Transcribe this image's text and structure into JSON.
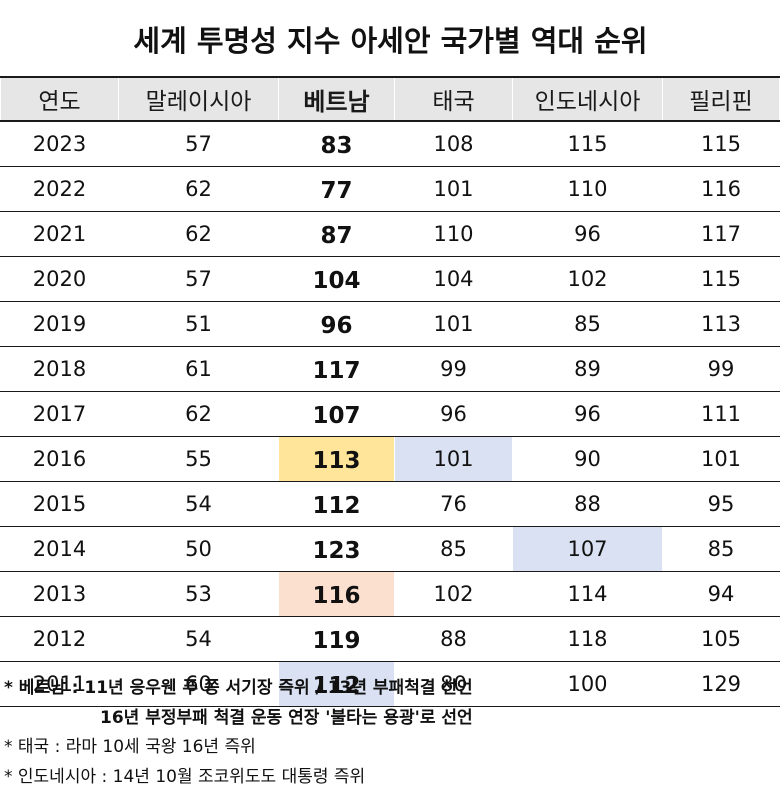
{
  "title": "세계 투명성 지수 아세안 국가별 역대 순위",
  "table": {
    "headers": [
      "연도",
      "말레이시아",
      "베트남",
      "태국",
      "인도네시아",
      "필리핀"
    ],
    "rows": [
      {
        "year": "2023",
        "malaysia": "57",
        "vietnam": "83",
        "thailand": "108",
        "indonesia": "115",
        "philippines": "115"
      },
      {
        "year": "2022",
        "malaysia": "62",
        "vietnam": "77",
        "thailand": "101",
        "indonesia": "110",
        "philippines": "116"
      },
      {
        "year": "2021",
        "malaysia": "62",
        "vietnam": "87",
        "thailand": "110",
        "indonesia": "96",
        "philippines": "117"
      },
      {
        "year": "2020",
        "malaysia": "57",
        "vietnam": "104",
        "thailand": "104",
        "indonesia": "102",
        "philippines": "115"
      },
      {
        "year": "2019",
        "malaysia": "51",
        "vietnam": "96",
        "thailand": "101",
        "indonesia": "85",
        "philippines": "113"
      },
      {
        "year": "2018",
        "malaysia": "61",
        "vietnam": "117",
        "thailand": "99",
        "indonesia": "89",
        "philippines": "99"
      },
      {
        "year": "2017",
        "malaysia": "62",
        "vietnam": "107",
        "thailand": "96",
        "indonesia": "96",
        "philippines": "111"
      },
      {
        "year": "2016",
        "malaysia": "55",
        "vietnam": "113",
        "thailand": "101",
        "indonesia": "90",
        "philippines": "101"
      },
      {
        "year": "2015",
        "malaysia": "54",
        "vietnam": "112",
        "thailand": "76",
        "indonesia": "88",
        "philippines": "95"
      },
      {
        "year": "2014",
        "malaysia": "50",
        "vietnam": "123",
        "thailand": "85",
        "indonesia": "107",
        "philippines": "85"
      },
      {
        "year": "2013",
        "malaysia": "53",
        "vietnam": "116",
        "thailand": "102",
        "indonesia": "114",
        "philippines": "94"
      },
      {
        "year": "2012",
        "malaysia": "54",
        "vietnam": "119",
        "thailand": "88",
        "indonesia": "118",
        "philippines": "105"
      },
      {
        "year": "2011",
        "malaysia": "60",
        "vietnam": "112",
        "thailand": "80",
        "indonesia": "100",
        "philippines": "129"
      }
    ],
    "highlights": [
      {
        "year": "2016",
        "column": "vietnam",
        "color": "#ffe599"
      },
      {
        "year": "2016",
        "column": "thailand",
        "color": "#d9e1f2"
      },
      {
        "year": "2014",
        "column": "indonesia",
        "color": "#d9e1f2"
      },
      {
        "year": "2013",
        "column": "vietnam",
        "color": "#fbe0d0"
      },
      {
        "year": "2011",
        "column": "vietnam",
        "color": "#d9e1f2"
      }
    ],
    "header_bg": "#e7e6e6"
  },
  "notes": [
    "* 베트남 : 11년 응우웬 푸 쫑 서기장 즉위 / 13년 부패척결 선언",
    "16년 부정부패 척결 운동 연장 '불타는 용광'로 선언",
    "* 태국 : 라마 10세 국왕 16년 즉위",
    "* 인도네시아 : 14년 10월 조코위도도 대통령 즉위"
  ]
}
